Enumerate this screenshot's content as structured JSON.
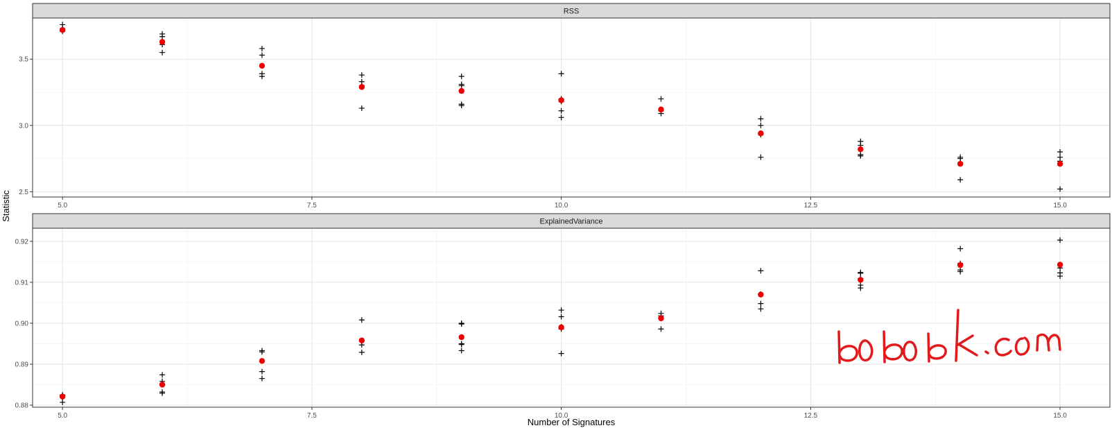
{
  "chart_data": [
    {
      "type": "scatter",
      "panel": "RSS",
      "xlim": [
        4.7,
        15.5
      ],
      "ylim": [
        2.46,
        3.81
      ],
      "x_ticks": [
        5.0,
        7.5,
        10.0,
        12.5,
        15.0
      ],
      "x_tick_labels": [
        "5.0",
        "7.5",
        "10.0",
        "12.5",
        "15.0"
      ],
      "y_ticks": [
        2.5,
        3.0,
        3.5
      ],
      "y_tick_labels": [
        "2.5",
        "3.0",
        "3.5"
      ],
      "grid": true,
      "series": [
        {
          "marker": "plus",
          "color": "#000000",
          "points": [
            [
              5,
              3.76
            ],
            [
              5,
              3.73
            ],
            [
              5,
              3.71
            ],
            [
              6,
              3.69
            ],
            [
              6,
              3.67
            ],
            [
              6,
              3.61
            ],
            [
              6,
              3.55
            ],
            [
              7,
              3.58
            ],
            [
              7,
              3.53
            ],
            [
              7,
              3.39
            ],
            [
              7,
              3.37
            ],
            [
              8,
              3.38
            ],
            [
              8,
              3.33
            ],
            [
              8,
              3.3
            ],
            [
              8,
              3.13
            ],
            [
              9,
              3.37
            ],
            [
              9,
              3.31
            ],
            [
              9,
              3.3
            ],
            [
              9,
              3.16
            ],
            [
              9,
              3.15
            ],
            [
              10,
              3.39
            ],
            [
              10,
              3.2
            ],
            [
              10,
              3.18
            ],
            [
              10,
              3.11
            ],
            [
              10,
              3.06
            ],
            [
              11,
              3.2
            ],
            [
              11,
              3.12
            ],
            [
              11,
              3.11
            ],
            [
              11,
              3.09
            ],
            [
              12,
              3.05
            ],
            [
              12,
              3.0
            ],
            [
              12,
              2.94
            ],
            [
              12,
              2.93
            ],
            [
              12,
              2.76
            ],
            [
              13,
              2.88
            ],
            [
              13,
              2.85
            ],
            [
              13,
              2.78
            ],
            [
              13,
              2.77
            ],
            [
              14,
              2.76
            ],
            [
              14,
              2.75
            ],
            [
              14,
              2.72
            ],
            [
              14,
              2.59
            ],
            [
              15,
              2.8
            ],
            [
              15,
              2.76
            ],
            [
              15,
              2.73
            ],
            [
              15,
              2.52
            ]
          ]
        },
        {
          "marker": "circle",
          "color": "#ee0000",
          "points": [
            [
              5,
              3.72
            ],
            [
              6,
              3.63
            ],
            [
              7,
              3.45
            ],
            [
              8,
              3.29
            ],
            [
              9,
              3.26
            ],
            [
              10,
              3.19
            ],
            [
              11,
              3.12
            ],
            [
              12,
              2.94
            ],
            [
              13,
              2.82
            ],
            [
              14,
              2.71
            ],
            [
              15,
              2.71
            ]
          ]
        }
      ]
    },
    {
      "type": "scatter",
      "panel": "ExplainedVariance",
      "xlim": [
        4.7,
        15.5
      ],
      "ylim": [
        0.8795,
        0.9232
      ],
      "x_ticks": [
        5.0,
        7.5,
        10.0,
        12.5,
        15.0
      ],
      "x_tick_labels": [
        "5.0",
        "7.5",
        "10.0",
        "12.5",
        "15.0"
      ],
      "y_ticks": [
        0.88,
        0.89,
        0.9,
        0.91,
        0.92
      ],
      "y_tick_labels": [
        "0.88",
        "0.89",
        "0.90",
        "0.91",
        "0.92"
      ],
      "grid": true,
      "series": [
        {
          "marker": "plus",
          "color": "#000000",
          "points": [
            [
              5,
              0.8825
            ],
            [
              5,
              0.8822
            ],
            [
              5,
              0.882
            ],
            [
              5,
              0.8807
            ],
            [
              6,
              0.8874
            ],
            [
              6,
              0.8858
            ],
            [
              6,
              0.8832
            ],
            [
              6,
              0.8829
            ],
            [
              7,
              0.8933
            ],
            [
              7,
              0.893
            ],
            [
              7,
              0.8882
            ],
            [
              7,
              0.8865
            ],
            [
              8,
              0.9008
            ],
            [
              8,
              0.8956
            ],
            [
              8,
              0.8947
            ],
            [
              8,
              0.8929
            ],
            [
              9,
              0.9
            ],
            [
              9,
              0.8998
            ],
            [
              9,
              0.895
            ],
            [
              9,
              0.8948
            ],
            [
              9,
              0.8933
            ],
            [
              10,
              0.9032
            ],
            [
              10,
              0.9016
            ],
            [
              10,
              0.8991
            ],
            [
              10,
              0.8986
            ],
            [
              10,
              0.8926
            ],
            [
              11,
              0.9024
            ],
            [
              11,
              0.9018
            ],
            [
              11,
              0.9014
            ],
            [
              11,
              0.8986
            ],
            [
              12,
              0.9128
            ],
            [
              12,
              0.9071
            ],
            [
              12,
              0.9048
            ],
            [
              12,
              0.9035
            ],
            [
              13,
              0.9124
            ],
            [
              13,
              0.9122
            ],
            [
              13,
              0.9109
            ],
            [
              13,
              0.9093
            ],
            [
              13,
              0.9086
            ],
            [
              14,
              0.9182
            ],
            [
              14,
              0.9146
            ],
            [
              14,
              0.913
            ],
            [
              14,
              0.9126
            ],
            [
              15,
              0.9203
            ],
            [
              15,
              0.9135
            ],
            [
              15,
              0.9123
            ],
            [
              15,
              0.9115
            ]
          ]
        },
        {
          "marker": "circle",
          "color": "#ee0000",
          "points": [
            [
              5,
              0.8821
            ],
            [
              6,
              0.885
            ],
            [
              7,
              0.8908
            ],
            [
              8,
              0.8958
            ],
            [
              9,
              0.8966
            ],
            [
              10,
              0.899
            ],
            [
              11,
              0.9012
            ],
            [
              12,
              0.907
            ],
            [
              13,
              0.9106
            ],
            [
              14,
              0.9142
            ],
            [
              15,
              0.9143
            ]
          ]
        }
      ]
    }
  ],
  "xlabel": "Number of Signatures",
  "ylabel": "Statistic",
  "watermark": {
    "text": "bobobk.com",
    "color": "#e31a1c"
  }
}
